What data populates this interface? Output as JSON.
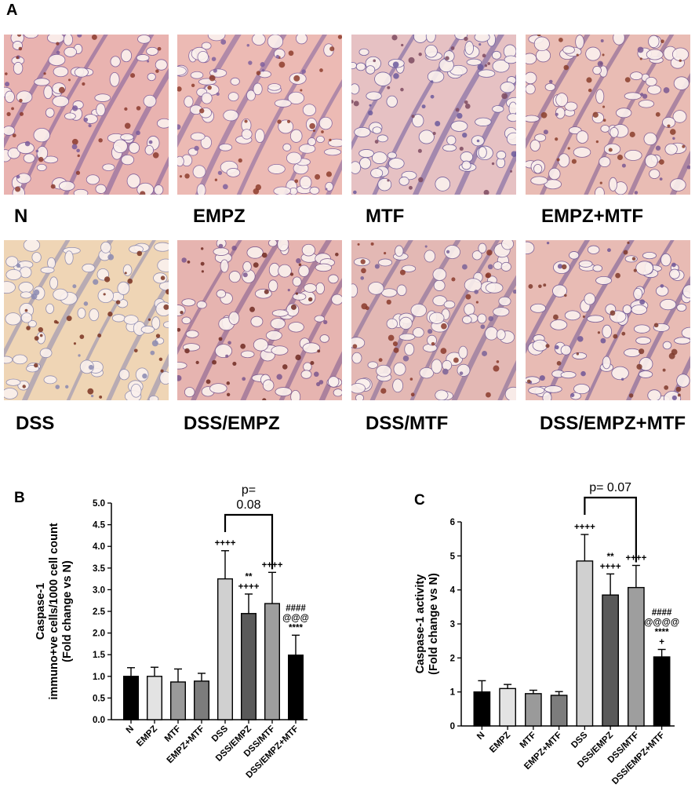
{
  "panel_a": {
    "letter": "A",
    "images": [
      {
        "label": "N",
        "tone": "#e9b3b0",
        "accent": "#8b3a2e",
        "vein": "#7a5a9a"
      },
      {
        "label": "EMPZ",
        "tone": "#ecbab4",
        "accent": "#8e3d2d",
        "vein": "#80609e"
      },
      {
        "label": "MTF",
        "tone": "#e6c1c3",
        "accent": "#7d4a60",
        "vein": "#6c5a9c"
      },
      {
        "label": "EMPZ+MTF",
        "tone": "#e9bcb4",
        "accent": "#8a3e2c",
        "vein": "#7a5892"
      },
      {
        "label": "DSS",
        "tone": "#efd5b5",
        "accent": "#7a3321",
        "vein": "#8a88b0"
      },
      {
        "label": "DSS/EMPZ",
        "tone": "#e6b4b0",
        "accent": "#6e2a22",
        "vein": "#7b578e"
      },
      {
        "label": "DSS/MTF",
        "tone": "#e3b8b4",
        "accent": "#8a3a2c",
        "vein": "#7a6298"
      },
      {
        "label": "DSS/EMPZ+MTF",
        "tone": "#e8bbb4",
        "accent": "#7e3a2c",
        "vein": "#6e5696"
      }
    ]
  },
  "chart_data": [
    {
      "panel": "B",
      "type": "bar",
      "ylabel": [
        "Caspase-1",
        "immuno+ve cells/1000 cell count",
        "(Fold change vs N)"
      ],
      "ylim": [
        0,
        5.0
      ],
      "yticks": [
        "0.0",
        "0.5",
        "1.0",
        "1.5",
        "2.0",
        "2.5",
        "3.0",
        "3.5",
        "4.0",
        "4.5",
        "5.0"
      ],
      "categories": [
        "N",
        "EMPZ",
        "MTF",
        "EMPZ+MTF",
        "DSS",
        "DSS/EMPZ",
        "DSS/MTF",
        "DSS/EMPZ+MTF"
      ],
      "values": [
        1.0,
        1.0,
        0.87,
        0.89,
        3.25,
        2.45,
        2.68,
        1.49
      ],
      "errors": [
        0.2,
        0.21,
        0.3,
        0.18,
        0.65,
        0.45,
        0.72,
        0.46
      ],
      "colors": [
        "#000000",
        "#e3e3e3",
        "#9a9a9a",
        "#7c7c7c",
        "#d0d0d0",
        "#5a5a5a",
        "#9e9e9e",
        "#000000"
      ],
      "annotations": [
        {
          "bar": 4,
          "lines": [
            "++++"
          ]
        },
        {
          "bar": 5,
          "lines": [
            "**",
            "++++"
          ]
        },
        {
          "bar": 6,
          "lines": [
            "++++"
          ]
        },
        {
          "bar": 7,
          "lines": [
            "####",
            "@@@",
            "****"
          ]
        }
      ],
      "bracket": {
        "from": 4,
        "to": 6,
        "label_lines": [
          "p=",
          "0.08"
        ]
      }
    },
    {
      "panel": "C",
      "type": "bar",
      "ylabel": [
        "Caspase-1 activity",
        "(Fold change vs N)"
      ],
      "ylim": [
        0,
        6
      ],
      "yticks": [
        "0",
        "1",
        "2",
        "3",
        "4",
        "5",
        "6"
      ],
      "categories": [
        "N",
        "EMPZ",
        "MTF",
        "EMPZ+MTF",
        "DSS",
        "DSS/EMPZ",
        "DSS/MTF",
        "DSS/EMPZ+MTF"
      ],
      "values": [
        1.0,
        1.1,
        0.95,
        0.9,
        4.85,
        3.85,
        4.07,
        2.03
      ],
      "errors": [
        0.33,
        0.12,
        0.1,
        0.11,
        0.78,
        0.62,
        0.65,
        0.22
      ],
      "colors": [
        "#000000",
        "#e3e3e3",
        "#9a9a9a",
        "#7c7c7c",
        "#d0d0d0",
        "#5a5a5a",
        "#9e9e9e",
        "#000000"
      ],
      "annotations": [
        {
          "bar": 4,
          "lines": [
            "++++"
          ]
        },
        {
          "bar": 5,
          "lines": [
            "**",
            "++++"
          ]
        },
        {
          "bar": 6,
          "lines": [
            "++++"
          ]
        },
        {
          "bar": 7,
          "lines": [
            "####",
            "@@@@",
            "****",
            "+"
          ]
        }
      ],
      "bracket": {
        "from": 4,
        "to": 6,
        "label_lines": [
          "p= 0.07"
        ]
      }
    }
  ]
}
